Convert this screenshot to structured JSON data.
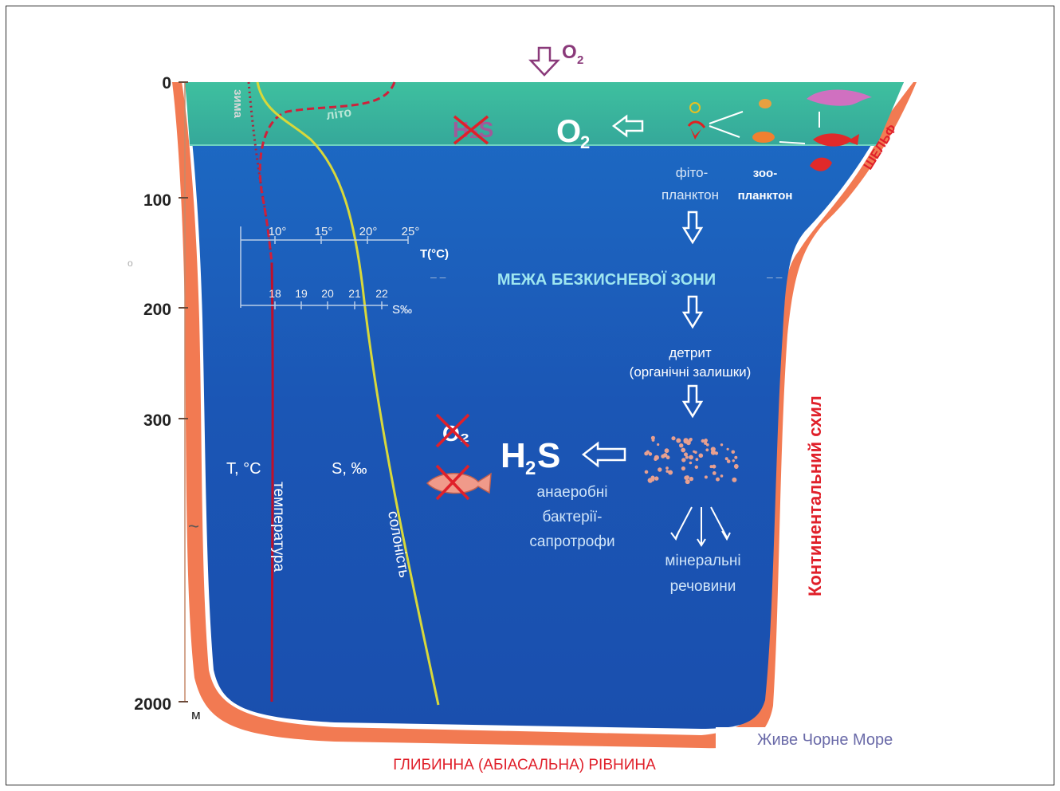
{
  "header": {
    "o2_label": "O",
    "o2_sub": "2"
  },
  "depth_axis": {
    "ticks": [
      "0",
      "100",
      "200",
      "300",
      "2000"
    ],
    "unit": "м"
  },
  "surface_curves": {
    "winter": "зима",
    "summer": "літо"
  },
  "temperature_scale": {
    "ticks": [
      "10°",
      "15°",
      "20°",
      "25°"
    ],
    "label": "T(°C)"
  },
  "salinity_scale": {
    "ticks": [
      "18",
      "19",
      "20",
      "21",
      "22"
    ],
    "label": "S‰"
  },
  "upper_zone": {
    "h2s_crossed": "H₂S",
    "o2_label": "O",
    "o2_sub": "2",
    "phyto": [
      "фіто-",
      "планктон"
    ],
    "zoo": [
      "зоо-",
      "планктон"
    ]
  },
  "shelf_label": "ШЕЛЬФ",
  "anoxic_boundary": "МЕЖА БЕЗКИСНЕВОЇ ЗОНИ",
  "detritus": [
    "детрит",
    "(органічні залишки)"
  ],
  "deep_zone": {
    "h2s_label": "H",
    "h2s_sub": "2",
    "h2s_tail": "S",
    "o2_crossed": "O₂",
    "bacteria": [
      "анаеробні",
      "бактерії-",
      "сапротрофи"
    ],
    "minerals": [
      "мінеральні",
      "речовини"
    ]
  },
  "curve_labels": {
    "t_axis": "T, °C",
    "s_axis": "S, ‰",
    "temperature": "температура",
    "salinity": "солоність"
  },
  "slope_label": "Континентальний   схил",
  "plain_label": "ГЛИБИННА (АБІАСАЛЬНА) РІВНИНА",
  "credit": "Живе Чорне Море",
  "colors": {
    "deep_water": "#1b56b5",
    "surface_water": "#3fb99c",
    "seafloor": "#f27a52",
    "accent_red": "#e0202a",
    "salinity_line": "#d8d83a",
    "temp_line": "#c0102a"
  }
}
